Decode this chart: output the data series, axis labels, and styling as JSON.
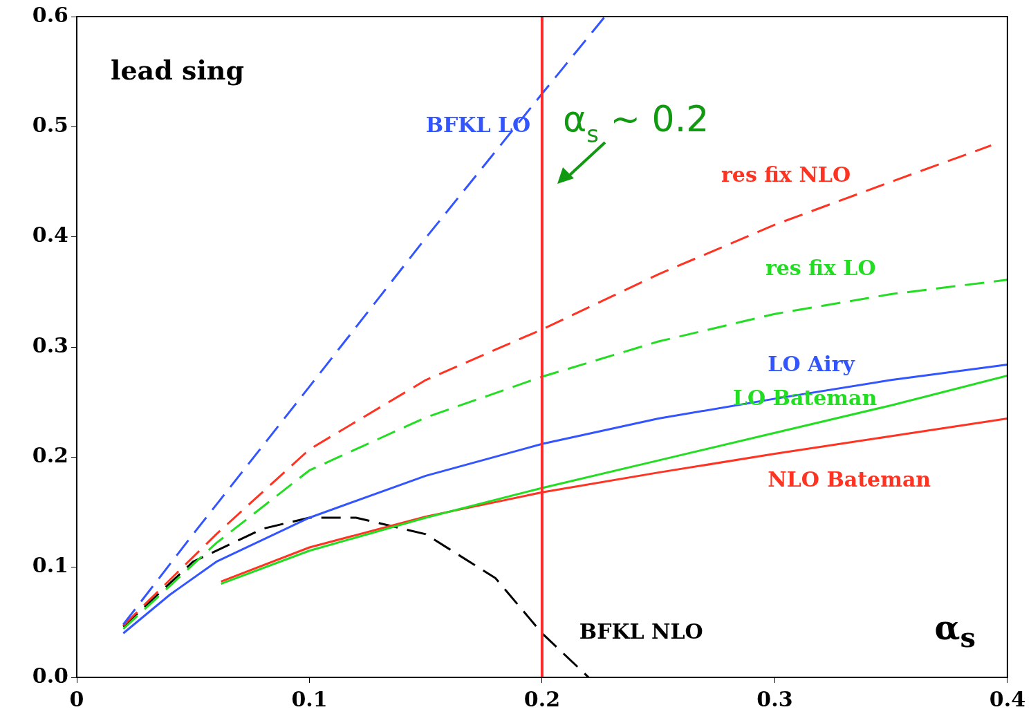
{
  "chart_data": {
    "type": "line",
    "xlabel": "α$_{s}$",
    "annotations": [
      "lead sing"
    ],
    "xlim": [
      0,
      0.4
    ],
    "ylim": [
      0,
      0.6
    ],
    "xticks": [
      0,
      0.1,
      0.2,
      0.3,
      0.4
    ],
    "yticks": [
      {
        "value": 0,
        "label": "0.0"
      },
      0.1,
      0.2,
      0.3,
      0.4,
      0.5,
      0.6
    ],
    "grid": false,
    "legend": false,
    "marker": "none",
    "ref_lines": [
      {
        "axis": "x",
        "value": 0.2,
        "label": "α$_{s}$ ~ 0.2",
        "color": "#ff2a2a"
      }
    ],
    "series": [
      {
        "name": "BFKL LO",
        "color": "#3355ff",
        "line_style": "dashed",
        "x": [
          0.02,
          0.05,
          0.1,
          0.15,
          0.2,
          0.227
        ],
        "values": [
          0.048,
          0.13,
          0.264,
          0.399,
          0.53,
          0.6
        ]
      },
      {
        "name": "res fix NLO",
        "color": "#ff3322",
        "line_style": "dashed",
        "x": [
          0.02,
          0.06,
          0.1,
          0.15,
          0.2,
          0.25,
          0.3,
          0.35,
          0.393
        ],
        "values": [
          0.047,
          0.13,
          0.207,
          0.27,
          0.316,
          0.366,
          0.411,
          0.45,
          0.483
        ]
      },
      {
        "name": "res fix LO",
        "color": "#22dd22",
        "line_style": "dashed",
        "x": [
          0.02,
          0.06,
          0.1,
          0.15,
          0.2,
          0.25,
          0.3,
          0.35,
          0.4
        ],
        "values": [
          0.044,
          0.122,
          0.188,
          0.236,
          0.273,
          0.305,
          0.33,
          0.348,
          0.361
        ]
      },
      {
        "name": "LO Airy",
        "color": "#3355ff",
        "line_style": "solid",
        "x": [
          0.02,
          0.04,
          0.06,
          0.1,
          0.15,
          0.2,
          0.25,
          0.3,
          0.35,
          0.4
        ],
        "values": [
          0.04,
          0.075,
          0.105,
          0.145,
          0.183,
          0.212,
          0.235,
          0.253,
          0.27,
          0.284
        ]
      },
      {
        "name": "LO Bateman",
        "color": "#22dd22",
        "line_style": "solid",
        "x": [
          0.062,
          0.1,
          0.15,
          0.2,
          0.25,
          0.3,
          0.35,
          0.4
        ],
        "values": [
          0.085,
          0.115,
          0.145,
          0.172,
          0.197,
          0.222,
          0.247,
          0.274
        ]
      },
      {
        "name": "NLO Bateman",
        "color": "#ff3322",
        "line_style": "solid",
        "x": [
          0.062,
          0.1,
          0.15,
          0.2,
          0.25,
          0.3,
          0.35,
          0.4
        ],
        "values": [
          0.087,
          0.118,
          0.146,
          0.168,
          0.186,
          0.203,
          0.219,
          0.235
        ]
      },
      {
        "name": "BFKL NLO",
        "color": "#000000",
        "line_style": "dashed",
        "x": [
          0.02,
          0.05,
          0.08,
          0.1,
          0.12,
          0.15,
          0.18,
          0.2,
          0.22
        ],
        "values": [
          0.046,
          0.105,
          0.135,
          0.145,
          0.145,
          0.13,
          0.09,
          0.04,
          0.0
        ]
      }
    ]
  }
}
